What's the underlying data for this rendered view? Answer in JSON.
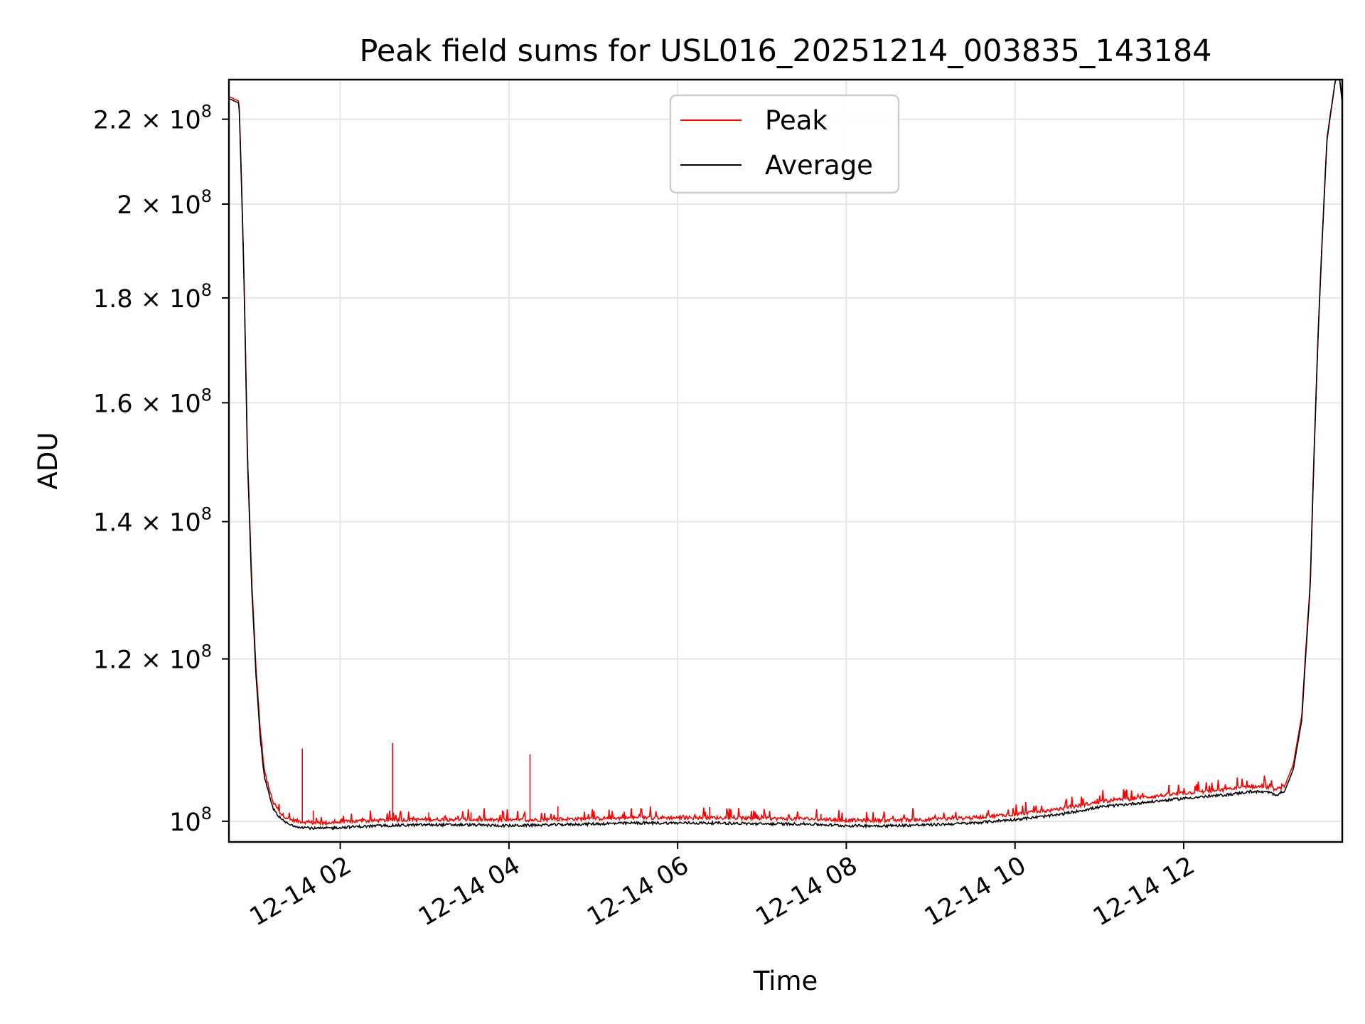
{
  "chart_data": {
    "type": "line",
    "title": "Peak field sums for USL016_20251214_003835_143184",
    "xlabel": "Time",
    "ylabel": "ADU",
    "x_unit": "hours since 2025-12-14 00:00",
    "xlim": [
      0.68,
      13.88
    ],
    "ylim": [
      97700000,
      230000000
    ],
    "yscale": "log",
    "grid": true,
    "legend": {
      "placement": "top-center",
      "entries": [
        "Peak",
        "Average"
      ]
    },
    "x_ticks": [
      {
        "value": 2,
        "label": "12-14 02"
      },
      {
        "value": 4,
        "label": "12-14 04"
      },
      {
        "value": 6,
        "label": "12-14 06"
      },
      {
        "value": 8,
        "label": "12-14 08"
      },
      {
        "value": 10,
        "label": "12-14 10"
      },
      {
        "value": 12,
        "label": "12-14 12"
      }
    ],
    "y_ticks": [
      {
        "value": 100000000,
        "mantissa": "10",
        "exponent": "8"
      },
      {
        "value": 120000000,
        "mantissa": "1.2 × 10",
        "exponent": "8"
      },
      {
        "value": 140000000,
        "mantissa": "1.4 × 10",
        "exponent": "8"
      },
      {
        "value": 160000000,
        "mantissa": "1.6 × 10",
        "exponent": "8"
      },
      {
        "value": 180000000,
        "mantissa": "1.8 × 10",
        "exponent": "8"
      },
      {
        "value": 200000000,
        "mantissa": "2 × 10",
        "exponent": "8"
      },
      {
        "value": 220000000,
        "mantissa": "2.2 × 10",
        "exponent": "8"
      }
    ],
    "series": [
      {
        "name": "Average",
        "color": "#000000",
        "x": [
          0.68,
          0.7,
          0.8,
          0.85,
          0.9,
          0.95,
          1.0,
          1.05,
          1.1,
          1.2,
          1.3,
          1.4,
          1.5,
          1.6,
          1.7,
          1.8,
          2.0,
          2.2,
          2.5,
          3.0,
          3.5,
          4.0,
          4.5,
          5.0,
          5.5,
          6.0,
          6.5,
          7.0,
          7.5,
          8.0,
          8.5,
          9.0,
          9.5,
          10.0,
          10.5,
          11.0,
          11.5,
          12.0,
          12.5,
          12.8,
          13.0,
          13.1,
          13.2,
          13.3,
          13.4,
          13.5,
          13.6,
          13.7,
          13.8,
          13.85,
          13.88
        ],
        "values": [
          225000000,
          225000000,
          224000000,
          190000000,
          150000000,
          130000000,
          118000000,
          110000000,
          105000000,
          101500000,
          100200000,
          99600000,
          99400000,
          99300000,
          99200000,
          99200000,
          99300000,
          99400000,
          99500000,
          99600000,
          99600000,
          99500000,
          99600000,
          99700000,
          99800000,
          99800000,
          99800000,
          99700000,
          99700000,
          99500000,
          99500000,
          99600000,
          99800000,
          100200000,
          100700000,
          101600000,
          102100000,
          102600000,
          103000000,
          103400000,
          103300000,
          103000000,
          103500000,
          106000000,
          112000000,
          130000000,
          175000000,
          215000000,
          230000000,
          230000000,
          224000000
        ]
      },
      {
        "name": "Peak",
        "color": "#ff0000",
        "x": [
          0.68,
          0.7,
          0.8,
          0.85,
          0.9,
          0.95,
          1.0,
          1.05,
          1.1,
          1.2,
          1.3,
          1.4,
          1.5,
          1.6,
          1.7,
          1.8,
          2.0,
          2.2,
          2.5,
          3.0,
          3.5,
          4.0,
          4.5,
          5.0,
          5.5,
          6.0,
          6.5,
          7.0,
          7.5,
          8.0,
          8.5,
          9.0,
          9.5,
          10.0,
          10.5,
          11.0,
          11.5,
          12.0,
          12.5,
          12.8,
          13.0,
          13.1,
          13.2,
          13.3,
          13.4,
          13.5,
          13.6,
          13.7,
          13.8,
          13.85,
          13.88
        ],
        "values": [
          225500000,
          225500000,
          224500000,
          191000000,
          151000000,
          131000000,
          119000000,
          111000000,
          105800000,
          102200000,
          100800000,
          100200000,
          100000000,
          99900000,
          99800000,
          99800000,
          99900000,
          100000000,
          100100000,
          100200000,
          100200000,
          100100000,
          100200000,
          100300000,
          100400000,
          100400000,
          100400000,
          100300000,
          100300000,
          100100000,
          100100000,
          100200000,
          100400000,
          100800000,
          101300000,
          102200000,
          102700000,
          103200000,
          103600000,
          104000000,
          103900000,
          103600000,
          104100000,
          106600000,
          112600000,
          130600000,
          175600000,
          215600000,
          230000000,
          230000000,
          224500000
        ]
      }
    ],
    "peak_spikes": [
      {
        "x": 1.55,
        "value": 108500000
      },
      {
        "x": 2.62,
        "value": 109200000
      },
      {
        "x": 4.25,
        "value": 107800000
      },
      {
        "x": 4.58,
        "value": 101700000
      },
      {
        "x": 6.38,
        "value": 101600000
      },
      {
        "x": 1.68,
        "value": 101200000
      },
      {
        "x": 3.05,
        "value": 101000000
      },
      {
        "x": 3.55,
        "value": 101000000
      },
      {
        "x": 7.7,
        "value": 100800000
      },
      {
        "x": 12.7,
        "value": 104400000
      }
    ]
  }
}
